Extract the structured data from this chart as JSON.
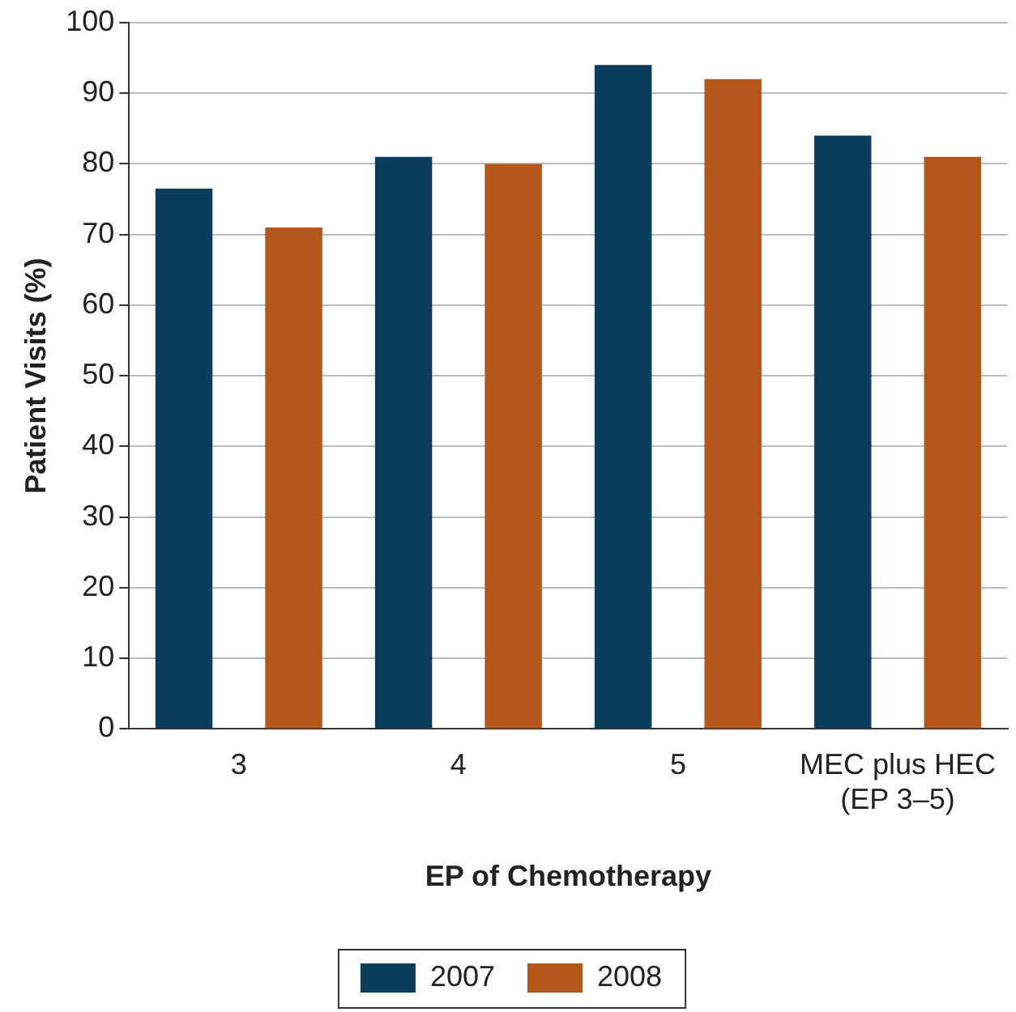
{
  "chart_data": {
    "type": "bar",
    "xlabel": "EP of Chemotherapy",
    "ylabel": "Patient Visits (%)",
    "categories": [
      "3",
      "4",
      "5",
      "MEC plus HEC (EP 3–5)"
    ],
    "series": [
      {
        "name": "2007",
        "color": "#0b3d5c",
        "values": [
          76.5,
          81,
          94,
          84
        ]
      },
      {
        "name": "2008",
        "color": "#b5561b",
        "values": [
          71,
          80,
          92,
          81
        ]
      }
    ],
    "ylim": [
      0,
      100
    ],
    "yticks": [
      0,
      10,
      20,
      30,
      40,
      50,
      60,
      70,
      80,
      90,
      100
    ],
    "grid": "y",
    "legend": "bottom"
  }
}
